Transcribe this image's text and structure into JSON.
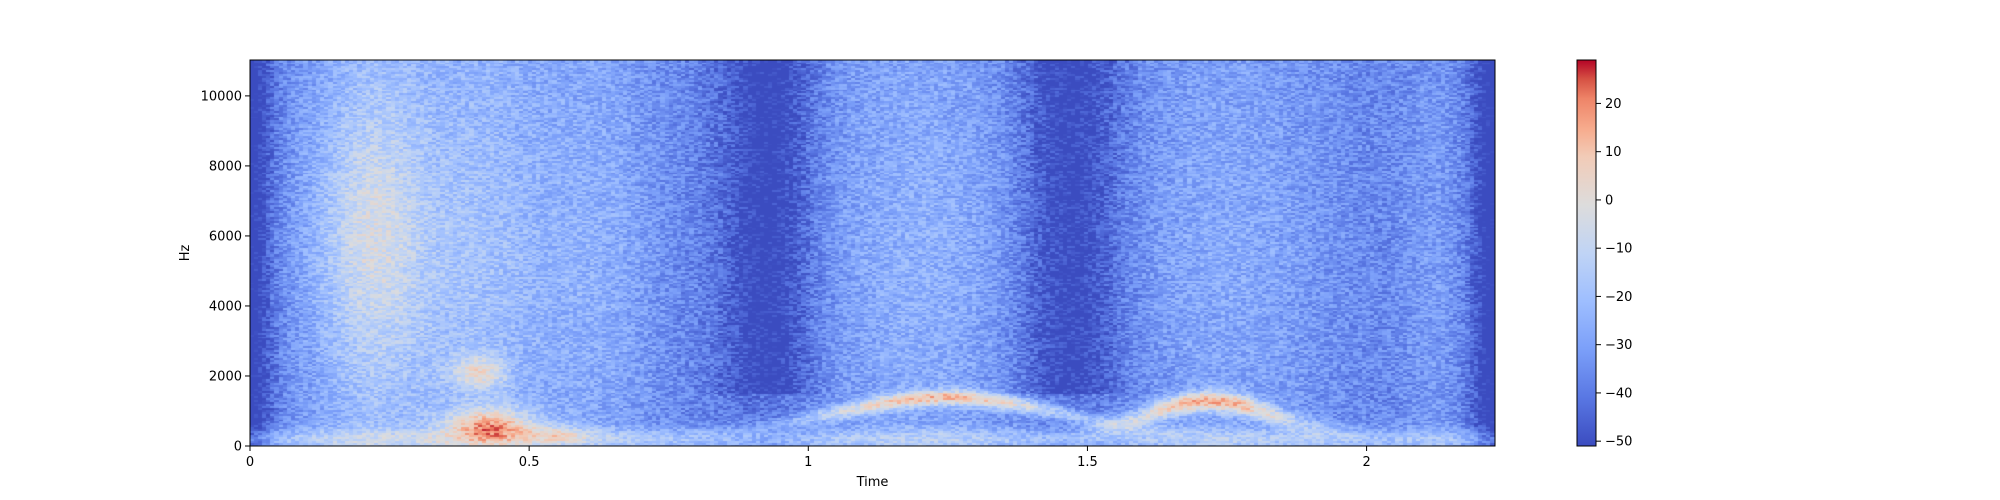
{
  "chart_data": {
    "type": "heatmap",
    "title": "",
    "xlabel": "Time",
    "ylabel": "Hz",
    "xlim": [
      0,
      2.23
    ],
    "ylim": [
      0,
      11025
    ],
    "x_ticks": [
      0,
      0.5,
      1,
      1.5,
      2
    ],
    "x_tick_labels": [
      "0",
      "0.5",
      "1",
      "1.5",
      "2"
    ],
    "y_ticks": [
      0,
      2000,
      4000,
      6000,
      8000,
      10000
    ],
    "y_tick_labels": [
      "0",
      "2000",
      "4000",
      "6000",
      "8000",
      "10000"
    ],
    "colorbar": {
      "colormap": "coolwarm",
      "vmin": -51,
      "vmax": 29,
      "ticks": [
        20,
        10,
        0,
        -10,
        -20,
        -30,
        -40,
        -50
      ],
      "tick_labels": [
        "20",
        "10",
        "0",
        "−10",
        "−20",
        "−30",
        "−40",
        "−50"
      ]
    },
    "colors": {
      "low": "#3b4cc0",
      "mid": "#dddddd",
      "high": "#b40426"
    },
    "grid": false
  }
}
